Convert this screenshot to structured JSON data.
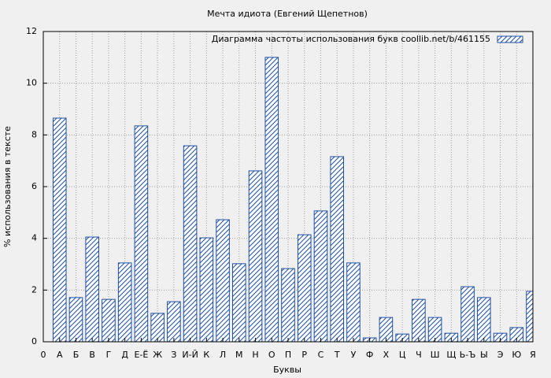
{
  "chart_data": {
    "type": "bar",
    "title": "Мечта идиота (Евгений Щепетнов)",
    "xlabel": "Буквы",
    "ylabel": "% использования в тексте",
    "x": [
      1,
      2,
      3,
      4,
      5,
      6,
      7,
      8,
      9,
      10,
      11,
      12,
      13,
      14,
      15,
      16,
      17,
      18,
      19,
      20,
      21,
      22,
      23,
      24,
      25,
      26,
      27,
      28,
      29,
      30
    ],
    "series": [
      {
        "name": "Диаграмма частоты использования букв  coollib.net/b/461155",
        "color": "#1f4fa0",
        "values": [
          8.65,
          1.71,
          4.05,
          1.64,
          3.05,
          8.35,
          1.1,
          1.55,
          7.58,
          4.02,
          4.72,
          3.02,
          6.61,
          11.0,
          2.83,
          4.14,
          5.06,
          7.16,
          3.05,
          0.15,
          0.94,
          0.3,
          1.64,
          0.94,
          0.33,
          2.13,
          1.71,
          0.33,
          0.55,
          1.95
        ]
      }
    ],
    "xlim": [
      0,
      30
    ],
    "xticks": [
      0,
      {
        "value": 1,
        "label": "А"
      },
      {
        "value": 2,
        "label": "Б"
      },
      {
        "value": 3,
        "label": "В"
      },
      {
        "value": 4,
        "label": "Г"
      },
      {
        "value": 5,
        "label": "Д"
      },
      {
        "value": 6,
        "label": "Е-Ё"
      },
      {
        "value": 7,
        "label": "Ж"
      },
      {
        "value": 8,
        "label": "З"
      },
      {
        "value": 9,
        "label": "И-Й"
      },
      {
        "value": 10,
        "label": "К"
      },
      {
        "value": 11,
        "label": "Л"
      },
      {
        "value": 12,
        "label": "М"
      },
      {
        "value": 13,
        "label": "Н"
      },
      {
        "value": 14,
        "label": "О"
      },
      {
        "value": 15,
        "label": "П"
      },
      {
        "value": 16,
        "label": "Р"
      },
      {
        "value": 17,
        "label": "С"
      },
      {
        "value": 18,
        "label": "Т"
      },
      {
        "value": 19,
        "label": "У"
      },
      {
        "value": 20,
        "label": "Ф"
      },
      {
        "value": 21,
        "label": "Х"
      },
      {
        "value": 22,
        "label": "Ц"
      },
      {
        "value": 23,
        "label": "Ч"
      },
      {
        "value": 24,
        "label": "Ш"
      },
      {
        "value": 25,
        "label": "Щ"
      },
      {
        "value": 26,
        "label": "Ь-Ъ"
      },
      {
        "value": 27,
        "label": "Ы"
      },
      {
        "value": 28,
        "label": "Э"
      },
      {
        "value": 29,
        "label": "Ю"
      },
      {
        "value": 30,
        "label": "Я"
      }
    ],
    "ylim": [
      0,
      12
    ],
    "yticks": [
      0,
      2,
      4,
      6,
      8,
      10,
      12
    ],
    "grid": true,
    "legend": "top-right"
  }
}
